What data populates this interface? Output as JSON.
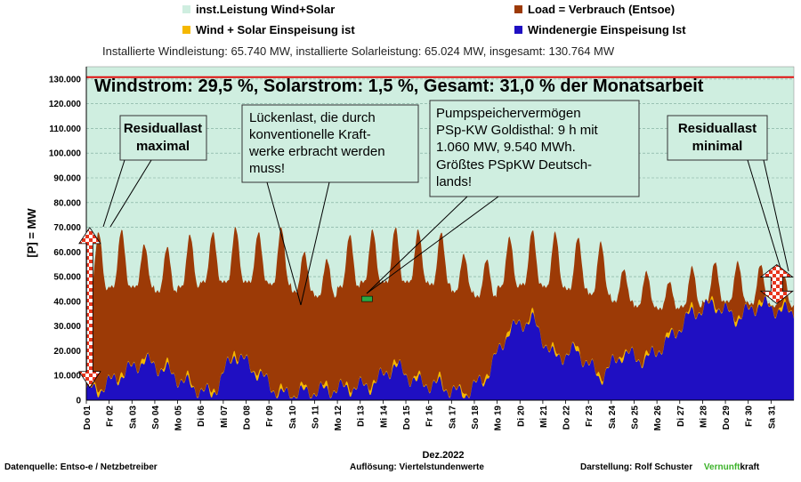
{
  "legend": [
    {
      "label": "inst.Leistung Wind+Solar",
      "color": "#cfeee0"
    },
    {
      "label": "Load = Verbrauch (Entsoe)",
      "color": "#9c3a06"
    },
    {
      "label": "Wind + Solar Einspeisung ist",
      "color": "#f5b800"
    },
    {
      "label": "Windenergie Einspeisung Ist",
      "color": "#1f0fc2"
    }
  ],
  "caption": "Installierte Windleistung: 65.740 MW, installierte Solarleistung: 65.024 MW, insgesamt: 130.764 MW",
  "headline": "Windstrom: 29,5 %, Solarstrom: 1,5 %, Gesamt: 31,0 % der Monatsarbeit",
  "annotations": {
    "residual_max": [
      "Residuallast",
      "maximal"
    ],
    "gap_load": [
      "Lückenlast, die durch",
      "konventionelle Kraft-",
      "werke erbracht werden",
      "muss!"
    ],
    "pumped_storage": [
      "Pumpspeichervermögen",
      "PSp-KW Goldisthal: 9 h mit",
      "1.060 MW, 9.540 MWh.",
      "Größtes PSpKW Deutsch-",
      "lands!"
    ],
    "residual_min": [
      "Residuallast",
      "minimal"
    ]
  },
  "footer": {
    "source": "Datenquelle: Entso-e / Netzbetreiber",
    "resolution": "Auflösung: Viertelstundenwerte",
    "author_prefix": "Darstellung: Rolf Schuster",
    "brand_green": "Vernunft",
    "brand_rest": "kraft",
    "brand_color": "#3cb22a"
  },
  "chart_data": {
    "type": "area",
    "ylabel": "[P] = MW",
    "xlabel": "Dez.2022",
    "ylim": [
      0,
      135000
    ],
    "yticks": [
      "0",
      "10.000",
      "20.000",
      "30.000",
      "40.000",
      "50.000",
      "60.000",
      "70.000",
      "80.000",
      "90.000",
      "100.000",
      "110.000",
      "120.000",
      "130.000"
    ],
    "yticks_values": [
      0,
      10000,
      20000,
      30000,
      40000,
      50000,
      60000,
      70000,
      80000,
      90000,
      100000,
      110000,
      120000,
      130000
    ],
    "categories": [
      "Do 01",
      "Fr 02",
      "Sa 03",
      "So 04",
      "Mo 05",
      "Di 06",
      "Mi 07",
      "Do 08",
      "Fr 09",
      "Sa 10",
      "So 11",
      "Mo 12",
      "Di 13",
      "Mi 14",
      "Do 15",
      "Fr 16",
      "Sa 17",
      "So 18",
      "Mo 19",
      "Di 20",
      "Mi 21",
      "Do 22",
      "Fr 23",
      "Sa 24",
      "So 25",
      "Mo 26",
      "Di 27",
      "Mi 28",
      "Do 29",
      "Fr 30",
      "Sa 31"
    ],
    "installed_capacity_line": 130764,
    "series": [
      {
        "name": "Load = Verbrauch (Entsoe)",
        "color": "#9c3a06",
        "daily_peak": [
          68000,
          69000,
          63000,
          62000,
          67000,
          68000,
          70000,
          68000,
          70000,
          60000,
          57000,
          67000,
          69000,
          70000,
          69000,
          68000,
          59000,
          57000,
          66000,
          69000,
          68000,
          66000,
          64000,
          53000,
          52000,
          48000,
          54000,
          56000,
          56000,
          55000,
          52000
        ],
        "daily_trough": [
          45000,
          46000,
          46000,
          44000,
          46000,
          48000,
          48000,
          48000,
          47000,
          44000,
          42000,
          46000,
          48000,
          48000,
          48000,
          47000,
          44000,
          42000,
          46000,
          47000,
          46000,
          45000,
          43000,
          40000,
          38000,
          37000,
          38000,
          40000,
          40000,
          39000,
          38000
        ]
      },
      {
        "name": "Wind + Solar Einspeisung ist",
        "color": "#f5b800",
        "daily_mean": [
          6000,
          11000,
          17000,
          13000,
          7000,
          3000,
          20000,
          12000,
          3000,
          4000,
          5000,
          6000,
          7000,
          15000,
          8000,
          7000,
          3000,
          10000,
          29000,
          34000,
          18000,
          21000,
          10000,
          20000,
          17000,
          25000,
          36000,
          40000,
          34000,
          40000,
          37000
        ]
      },
      {
        "name": "Windenergie Einspeisung Ist",
        "color": "#1f0fc2",
        "daily_mean": [
          4000,
          10000,
          16000,
          12000,
          6000,
          2000,
          19000,
          11000,
          2000,
          3000,
          4000,
          5000,
          6000,
          14000,
          7000,
          6000,
          2000,
          9000,
          28000,
          33000,
          17000,
          20000,
          9000,
          19000,
          16000,
          24000,
          35000,
          39000,
          33000,
          39000,
          36000
        ]
      }
    ],
    "markers": [
      {
        "label": "Residuallast maximal",
        "day": 1.15,
        "low": 8000,
        "high": 67000
      },
      {
        "label": "Residuallast minimal",
        "day": 31.25,
        "low": 42000,
        "high": 52000
      }
    ],
    "pumped_storage_marker": {
      "day": 13.3,
      "value": 41000
    }
  }
}
